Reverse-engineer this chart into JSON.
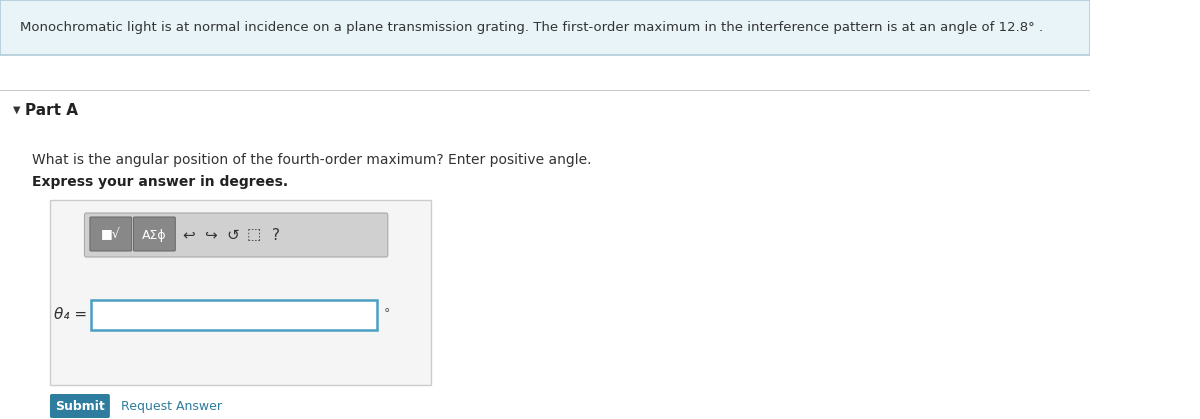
{
  "header_text": "Monochromatic light is at normal incidence on a plane transmission grating. The first-order maximum in the interference pattern is at an angle of 12.8° .",
  "header_bg": "#e8f4f8",
  "header_border": "#b0ccd8",
  "part_label": "Part A",
  "arrow_symbol": "▼",
  "question_text": "What is the angular position of the fourth-order maximum? Enter positive angle.",
  "bold_text": "Express your answer in degrees.",
  "theta_label": "θ₄ =",
  "degree_symbol": "°",
  "submit_text": "Submit",
  "submit_bg": "#2e7d9e",
  "submit_text_color": "#ffffff",
  "request_answer_text": "Request Answer",
  "request_answer_color": "#2e7d9e",
  "bg_color": "#ffffff",
  "separator_color": "#cccccc",
  "input_box_border": "#4a9fc4",
  "input_box_bg": "#ffffff",
  "toolbar_bg": "#d0d0d0",
  "outer_box_border": "#cccccc",
  "outer_box_bg": "#f5f5f5",
  "header_font_size": 9.5,
  "body_font_size": 10,
  "part_font_size": 11
}
